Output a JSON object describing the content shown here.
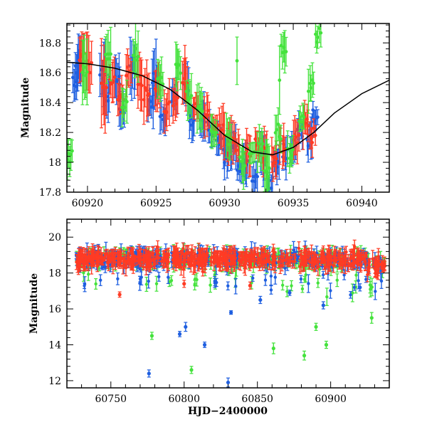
{
  "colors": {
    "blue": "#1f5fe0",
    "red": "#ff3b24",
    "green": "#44e23c",
    "model": "#000000"
  },
  "chart_data": [
    {
      "type": "scatter",
      "title": "",
      "xlabel": "",
      "ylabel": "Magnitude",
      "xlim": [
        60918.5,
        60942
      ],
      "ylim": [
        18.93,
        17.8
      ],
      "y_inverted": true,
      "grid": false,
      "legend": "none",
      "xticks": [
        60920,
        60925,
        60930,
        60935,
        60940
      ],
      "yticks": [
        17.8,
        18,
        18.2,
        18.4,
        18.6,
        18.8
      ],
      "ytick_labels": [
        "17.8",
        "18",
        "18.2",
        "18.4",
        "18.6",
        "18.8"
      ],
      "model_curve": {
        "description": "smooth light-curve model",
        "x": [
          60918.5,
          60920,
          60922,
          60924,
          60926,
          60928,
          60930,
          60932,
          60933.5,
          60935,
          60936.5,
          60938,
          60940,
          60942
        ],
        "y": [
          18.67,
          18.66,
          18.63,
          18.58,
          18.49,
          18.35,
          18.18,
          18.07,
          18.05,
          18.1,
          18.2,
          18.33,
          18.46,
          18.55
        ]
      },
      "series": [
        {
          "color": "blue",
          "x": [
            60919.1,
            60919.3,
            60919.5,
            60921.1,
            60921.4,
            60922.2,
            60922.5,
            60923.3,
            60924.6,
            60924.9,
            60925.5,
            60926.3,
            60927.2,
            60927.6,
            60928.4,
            60929.0,
            60929.6,
            60930.1,
            60930.6,
            60931.1,
            60931.5,
            60932.2,
            60932.8,
            60933.3,
            60933.8,
            60934.4,
            60935.0,
            60935.5,
            60936.2,
            60936.6
          ],
          "y": [
            18.55,
            18.65,
            18.7,
            18.6,
            18.45,
            18.55,
            18.35,
            18.6,
            18.4,
            18.55,
            18.3,
            18.45,
            18.5,
            18.25,
            18.3,
            18.2,
            18.15,
            18.05,
            18.1,
            17.95,
            18.0,
            17.9,
            18.05,
            17.85,
            17.98,
            18.05,
            18.1,
            18.2,
            18.15,
            18.3
          ],
          "err": [
            0.08,
            0.1,
            0.12,
            0.15,
            0.1,
            0.12,
            0.1,
            0.14,
            0.1,
            0.15,
            0.08,
            0.1,
            0.14,
            0.08,
            0.1,
            0.08,
            0.1,
            0.09,
            0.12,
            0.08,
            0.1,
            0.08,
            0.12,
            0.1,
            0.08,
            0.1,
            0.08,
            0.08,
            0.1,
            0.06
          ]
        },
        {
          "color": "red",
          "x": [
            60919.6,
            60920.1,
            60921.2,
            60921.8,
            60922.4,
            60923.0,
            60923.8,
            60924.3,
            60925.1,
            60925.8,
            60926.4,
            60927.1,
            60927.9,
            60928.7,
            60929.3,
            60929.8,
            60930.4,
            60930.9,
            60931.7,
            60932.4,
            60932.9,
            60933.6,
            60934.2,
            60935.2,
            60935.9,
            60936.4
          ],
          "y": [
            18.7,
            18.65,
            18.5,
            18.55,
            18.45,
            18.6,
            18.55,
            18.45,
            18.5,
            18.35,
            18.4,
            18.55,
            18.35,
            18.3,
            18.25,
            18.2,
            18.15,
            18.1,
            18.05,
            18.12,
            18.08,
            18.02,
            18.1,
            18.15,
            18.25,
            18.18
          ],
          "err": [
            0.12,
            0.15,
            0.2,
            0.1,
            0.12,
            0.1,
            0.12,
            0.15,
            0.1,
            0.12,
            0.1,
            0.14,
            0.08,
            0.1,
            0.08,
            0.12,
            0.1,
            0.08,
            0.1,
            0.08,
            0.1,
            0.08,
            0.1,
            0.12,
            0.1,
            0.08
          ]
        },
        {
          "color": "green",
          "x": [
            60918.7,
            60919.8,
            60921.5,
            60922.7,
            60923.5,
            60925.3,
            60926.6,
            60927.4,
            60928.2,
            60929.2,
            60930.3,
            60931.3,
            60932.0,
            60932.6,
            60933.1,
            60933.9,
            60934.3,
            60934.8,
            60935.6,
            60936.3,
            60936.8
          ],
          "y": [
            18.03,
            18.6,
            18.7,
            18.4,
            18.7,
            18.55,
            18.65,
            18.45,
            18.35,
            18.2,
            18.15,
            18.0,
            18.05,
            18.1,
            17.95,
            18.2,
            18.75,
            18.05,
            18.3,
            18.5,
            18.85
          ],
          "err": [
            0.1,
            0.15,
            0.12,
            0.1,
            0.15,
            0.1,
            0.12,
            0.1,
            0.12,
            0.08,
            0.1,
            0.1,
            0.08,
            0.1,
            0.15,
            0.08,
            0.1,
            0.08,
            0.08,
            0.1,
            0.08
          ]
        },
        {
          "color": "green",
          "outliers": true,
          "x": [
            60930.9,
            60934.0
          ],
          "y": [
            18.68,
            18.55
          ],
          "err": [
            0.15,
            0.25
          ]
        }
      ]
    },
    {
      "type": "scatter",
      "title": "",
      "xlabel": "HJD−2400000",
      "ylabel": "Magnitude",
      "xlim": [
        60720,
        60940
      ],
      "ylim": [
        21,
        11.6
      ],
      "y_inverted": true,
      "grid": false,
      "legend": "none",
      "xticks": [
        60750,
        60800,
        60850,
        60900
      ],
      "yticks": [
        12,
        14,
        16,
        18,
        20
      ],
      "ytick_labels": [
        "12",
        "14",
        "16",
        "18",
        "20"
      ],
      "dense_band": {
        "x_range": [
          60726,
          60937
        ],
        "center_mag": 18.8,
        "scatter": 0.45
      },
      "series": [
        {
          "color": "blue",
          "outliers": true,
          "x": [
            60776,
            60797,
            60801,
            60814,
            60830,
            60832,
            60852,
            60872,
            60895,
            60920
          ],
          "y": [
            12.4,
            14.6,
            15.0,
            14.0,
            11.9,
            15.8,
            16.5,
            16.9,
            16.2,
            17.2
          ],
          "err": [
            0.2,
            0.15,
            0.25,
            0.15,
            0.25,
            0.1,
            0.2,
            0.15,
            0.2,
            0.2
          ]
        },
        {
          "color": "green",
          "outliers": true,
          "x": [
            60778,
            60805,
            60861,
            60882,
            60890,
            60897,
            60928
          ],
          "y": [
            14.5,
            12.6,
            13.8,
            13.4,
            15.0,
            14.0,
            15.5
          ],
          "err": [
            0.2,
            0.2,
            0.3,
            0.25,
            0.2,
            0.2,
            0.3
          ]
        },
        {
          "color": "red",
          "outliers": true,
          "x": [
            60756,
            60800,
            60845
          ],
          "y": [
            16.8,
            17.4,
            17.3
          ],
          "err": [
            0.15,
            0.2,
            0.2
          ]
        }
      ]
    }
  ]
}
